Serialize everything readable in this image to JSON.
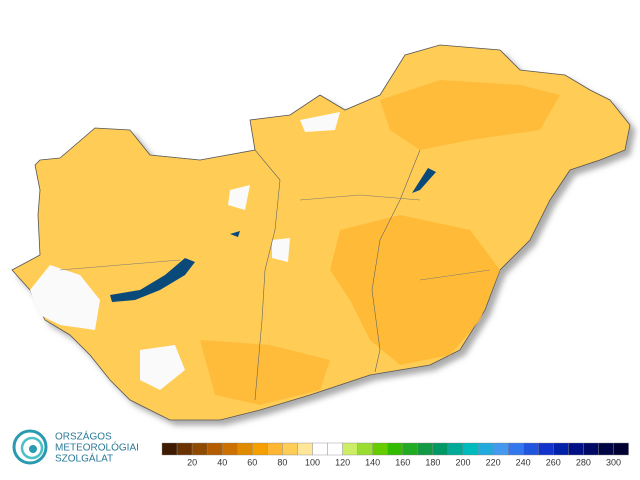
{
  "logo": {
    "lines": [
      "ORSZÁGOS",
      "METEOROLÓGIAI",
      "SZOLGÁLAT"
    ]
  },
  "legend": {
    "ticks": [
      20,
      40,
      60,
      80,
      100,
      120,
      140,
      160,
      180,
      200,
      220,
      240,
      260,
      280,
      300
    ],
    "bin_width": 10,
    "start": 0,
    "colors": [
      "#3d1a00",
      "#6b3300",
      "#8f4a00",
      "#b35c00",
      "#cc7000",
      "#e08a00",
      "#f5a000",
      "#ffb733",
      "#ffcc55",
      "#ffe699",
      "#ffffff",
      "#ffffff",
      "#ccee66",
      "#99dd33",
      "#66cc00",
      "#33bb00",
      "#22aa22",
      "#119944",
      "#009966",
      "#00aa99",
      "#00bbbb",
      "#22aadd",
      "#4499ee",
      "#3377ee",
      "#2255dd",
      "#1133cc",
      "#0022aa",
      "#001188",
      "#000a66",
      "#000544",
      "#000033"
    ]
  }
}
